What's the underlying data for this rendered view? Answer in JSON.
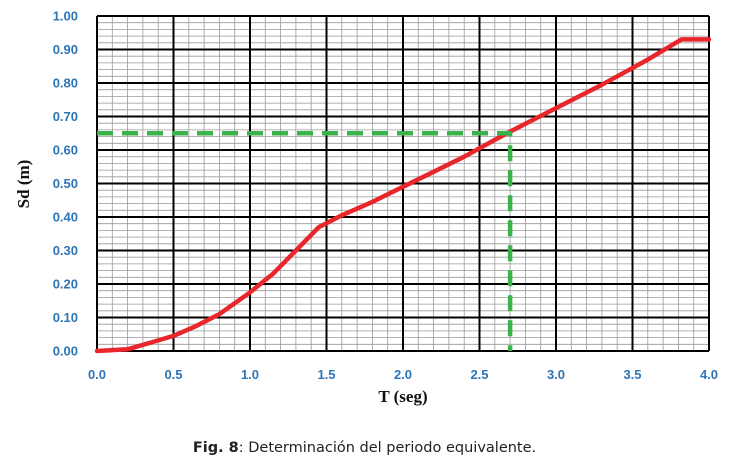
{
  "chart_data": {
    "type": "line",
    "xlabel": "T (seg)",
    "ylabel": "Sd (m)",
    "xlim": [
      0.0,
      4.0
    ],
    "ylim": [
      0.0,
      1.0
    ],
    "x_ticks": [
      "0.0",
      "0.5",
      "1.0",
      "1.5",
      "2.0",
      "2.5",
      "3.0",
      "3.5",
      "4.0"
    ],
    "y_ticks": [
      "0.00",
      "0.10",
      "0.20",
      "0.30",
      "0.40",
      "0.50",
      "0.60",
      "0.70",
      "0.80",
      "0.90",
      "1.00"
    ],
    "grid": true,
    "series": [
      {
        "color": "#e8262b",
        "style": "solid",
        "points": [
          [
            0.0,
            0.0
          ],
          [
            0.2,
            0.005
          ],
          [
            0.35,
            0.025
          ],
          [
            0.5,
            0.045
          ],
          [
            0.65,
            0.075
          ],
          [
            0.8,
            0.11
          ],
          [
            1.0,
            0.175
          ],
          [
            1.15,
            0.23
          ],
          [
            1.3,
            0.3
          ],
          [
            1.45,
            0.37
          ],
          [
            1.6,
            0.405
          ],
          [
            1.8,
            0.445
          ],
          [
            2.0,
            0.49
          ],
          [
            2.2,
            0.535
          ],
          [
            2.4,
            0.58
          ],
          [
            2.6,
            0.63
          ],
          [
            2.7,
            0.655
          ],
          [
            3.0,
            0.725
          ],
          [
            3.3,
            0.795
          ],
          [
            3.6,
            0.87
          ],
          [
            3.82,
            0.93
          ],
          [
            4.0,
            0.93
          ]
        ]
      },
      {
        "color": "#3cb34a",
        "style": "dashed",
        "points": [
          [
            0.0,
            0.65
          ],
          [
            2.7,
            0.65
          ],
          [
            2.7,
            0.0
          ]
        ]
      }
    ]
  },
  "caption": {
    "label": "Fig. 8",
    "text": ": Determinación del periodo equivalente."
  }
}
